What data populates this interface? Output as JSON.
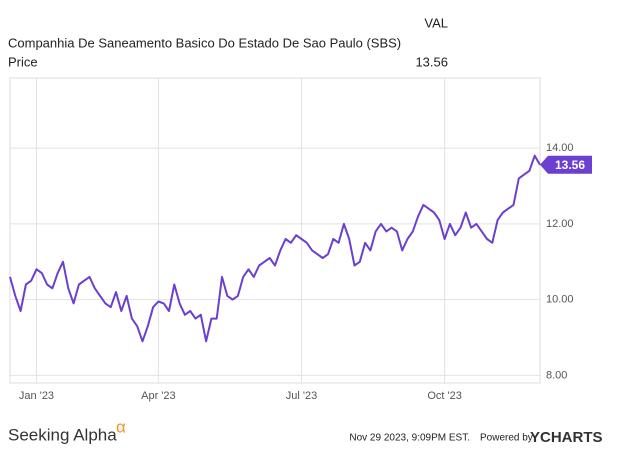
{
  "header": {
    "ticker": "VAL",
    "company": "Companhia De Saneamento Basico Do Estado De Sao Paulo (SBS)",
    "metric": "Price"
  },
  "chart_data": {
    "type": "line",
    "categories": [
      null,
      null,
      null,
      null,
      null,
      "Jan '23",
      null,
      null,
      null,
      null,
      null,
      null,
      null,
      null,
      null,
      null,
      null,
      null,
      null,
      null,
      null,
      null,
      null,
      null,
      null,
      null,
      null,
      null,
      "Apr '23",
      null,
      null,
      null,
      null,
      null,
      null,
      null,
      null,
      null,
      null,
      null,
      null,
      null,
      null,
      null,
      null,
      null,
      null,
      null,
      null,
      null,
      null,
      null,
      null,
      null,
      null,
      "Jul '23",
      null,
      null,
      null,
      null,
      null,
      null,
      null,
      null,
      null,
      null,
      null,
      null,
      null,
      null,
      null,
      null,
      null,
      null,
      null,
      null,
      null,
      null,
      null,
      null,
      null,
      null,
      "Oct '23",
      null,
      null,
      null,
      null,
      null,
      null,
      null,
      null,
      null,
      null,
      null,
      null,
      null,
      null,
      null,
      null,
      null,
      null
    ],
    "series": [
      {
        "name": "Price",
        "color": "#6b3fd0",
        "values": [
          10.6,
          10.1,
          9.7,
          10.4,
          10.5,
          10.8,
          10.7,
          10.4,
          10.3,
          10.7,
          11.0,
          10.3,
          9.9,
          10.4,
          10.5,
          10.6,
          10.3,
          10.1,
          9.9,
          9.8,
          10.2,
          9.7,
          10.1,
          9.5,
          9.3,
          8.9,
          9.3,
          9.8,
          9.95,
          9.9,
          9.7,
          10.4,
          9.9,
          9.6,
          9.7,
          9.5,
          9.6,
          8.9,
          9.5,
          9.5,
          10.6,
          10.1,
          10.0,
          10.1,
          10.6,
          10.8,
          10.6,
          10.9,
          11.0,
          11.1,
          10.9,
          11.3,
          11.6,
          11.5,
          11.7,
          11.6,
          11.5,
          11.3,
          11.2,
          11.1,
          11.2,
          11.6,
          11.5,
          12.0,
          11.6,
          10.9,
          11.0,
          11.5,
          11.3,
          11.8,
          12.0,
          11.8,
          11.9,
          11.8,
          11.3,
          11.6,
          11.8,
          12.2,
          12.5,
          12.4,
          12.3,
          12.1,
          11.6,
          12.0,
          11.7,
          11.9,
          12.3,
          11.9,
          12.0,
          11.8,
          11.6,
          11.5,
          12.1,
          12.3,
          12.4,
          12.5,
          13.2,
          13.3,
          13.4,
          13.8,
          13.56
        ]
      }
    ],
    "ylim": [
      7.8,
      15.85
    ],
    "yticks": [
      {
        "value": 8,
        "label": "8.00"
      },
      {
        "value": 10,
        "label": "10.00"
      },
      {
        "value": 12,
        "label": "12.00"
      },
      {
        "value": 14,
        "label": "14.00"
      }
    ],
    "grid": true
  },
  "footer": {
    "brand": "Seeking Alpha",
    "brand_mark": "α",
    "timestamp": "Nov 29 2023, 9:09PM EST.",
    "powered": "Powered by",
    "provider": "YCHARTS"
  }
}
